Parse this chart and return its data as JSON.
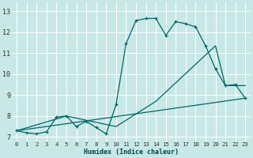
{
  "xlabel": "Humidex (Indice chaleur)",
  "bg_color": "#c8e8e8",
  "grid_color": "#ffffff",
  "line_color": "#006666",
  "xlim": [
    -0.5,
    23.5
  ],
  "ylim": [
    6.8,
    13.4
  ],
  "xticks": [
    0,
    1,
    2,
    3,
    4,
    5,
    6,
    7,
    8,
    9,
    10,
    11,
    12,
    13,
    14,
    15,
    16,
    17,
    18,
    19,
    20,
    21,
    22,
    23
  ],
  "yticks": [
    7,
    8,
    9,
    10,
    11,
    12,
    13
  ],
  "line1_x": [
    0,
    1,
    2,
    3,
    4,
    5,
    6,
    7,
    8,
    9,
    10,
    11,
    12,
    13,
    14,
    15,
    16,
    17,
    18,
    19,
    20,
    21,
    22,
    23
  ],
  "line1_y": [
    7.3,
    7.2,
    7.15,
    7.25,
    7.95,
    8.0,
    7.5,
    7.75,
    7.45,
    7.15,
    8.55,
    11.45,
    12.55,
    12.65,
    12.65,
    11.85,
    12.5,
    12.4,
    12.25,
    11.35,
    10.25,
    9.45,
    9.5,
    8.85
  ],
  "line2_x": [
    0,
    23
  ],
  "line2_y": [
    7.3,
    8.85
  ],
  "line3_x": [
    0,
    5,
    10,
    14,
    20,
    21,
    23
  ],
  "line3_y": [
    7.3,
    8.0,
    7.5,
    8.7,
    11.35,
    9.45,
    9.45
  ]
}
